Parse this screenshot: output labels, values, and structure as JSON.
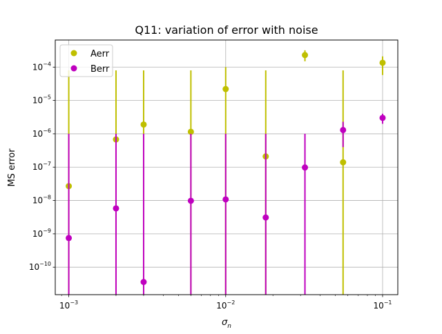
{
  "chart_data": {
    "type": "scatter",
    "title": "Q11: variation of error with noise",
    "xlabel": "σn",
    "xlabel_main": "σ",
    "xlabel_sub": "n",
    "ylabel": "MS error",
    "xscale": "log",
    "yscale": "log",
    "xlim": [
      0.00082,
      0.125
    ],
    "ylim": [
      1.5e-11,
      0.00065
    ],
    "grid": true,
    "legend_position": "top-left",
    "x_ticks": [
      {
        "value": 0.001,
        "base": "10",
        "exp": "−3"
      },
      {
        "value": 0.01,
        "base": "10",
        "exp": "−2"
      },
      {
        "value": 0.1,
        "base": "10",
        "exp": "−1"
      }
    ],
    "y_ticks": [
      {
        "value": 1e-10,
        "base": "10",
        "exp": "−10"
      },
      {
        "value": 1e-09,
        "base": "10",
        "exp": "−9"
      },
      {
        "value": 1e-08,
        "base": "10",
        "exp": "−8"
      },
      {
        "value": 1e-07,
        "base": "10",
        "exp": "−7"
      },
      {
        "value": 1e-06,
        "base": "10",
        "exp": "−6"
      },
      {
        "value": 1e-05,
        "base": "10",
        "exp": "−5"
      },
      {
        "value": 0.0001,
        "base": "10",
        "exp": "−4"
      }
    ],
    "series": [
      {
        "name": "Aerr",
        "color": "#bfbf00",
        "points": [
          {
            "x": 0.001,
            "y": 2.7e-08,
            "lo": 1e-12,
            "hi": 8e-05
          },
          {
            "x": 0.002,
            "y": 6.8e-07,
            "lo": 1e-12,
            "hi": 8e-05
          },
          {
            "x": 0.003,
            "y": 1.9e-06,
            "lo": 1e-12,
            "hi": 8e-05
          },
          {
            "x": 0.006,
            "y": 1.15e-06,
            "lo": 1e-12,
            "hi": 8e-05
          },
          {
            "x": 0.01,
            "y": 2.2e-05,
            "lo": 1e-12,
            "hi": 0.0001
          },
          {
            "x": 0.018,
            "y": 2.1e-07,
            "lo": 1e-12,
            "hi": 8e-05
          },
          {
            "x": 0.032,
            "y": 0.00023,
            "lo": 0.00015,
            "hi": 0.00032
          },
          {
            "x": 0.056,
            "y": 1.4e-07,
            "lo": 1e-12,
            "hi": 8e-05
          },
          {
            "x": 0.1,
            "y": 0.000135,
            "lo": 5.8e-05,
            "hi": 0.00021
          }
        ]
      },
      {
        "name": "Berr",
        "color": "#bf00bf",
        "points": [
          {
            "x": 0.001,
            "y": 7.5e-10,
            "lo": 1e-12,
            "hi": 1e-06
          },
          {
            "x": 0.002,
            "y": 5.8e-09,
            "lo": 1e-12,
            "hi": 1e-06
          },
          {
            "x": 0.003,
            "y": 3.6e-11,
            "lo": 1e-12,
            "hi": 1e-06
          },
          {
            "x": 0.006,
            "y": 9.8e-09,
            "lo": 1e-12,
            "hi": 1e-06
          },
          {
            "x": 0.01,
            "y": 1.08e-08,
            "lo": 1e-12,
            "hi": 1e-06
          },
          {
            "x": 0.018,
            "y": 3.1e-09,
            "lo": 1e-12,
            "hi": 1e-06
          },
          {
            "x": 0.032,
            "y": 9.8e-08,
            "lo": 1e-12,
            "hi": 1e-06
          },
          {
            "x": 0.056,
            "y": 1.3e-06,
            "lo": 4e-07,
            "hi": 2.3e-06
          },
          {
            "x": 0.1,
            "y": 3e-06,
            "lo": 2e-06,
            "hi": 4e-06
          }
        ]
      }
    ]
  }
}
